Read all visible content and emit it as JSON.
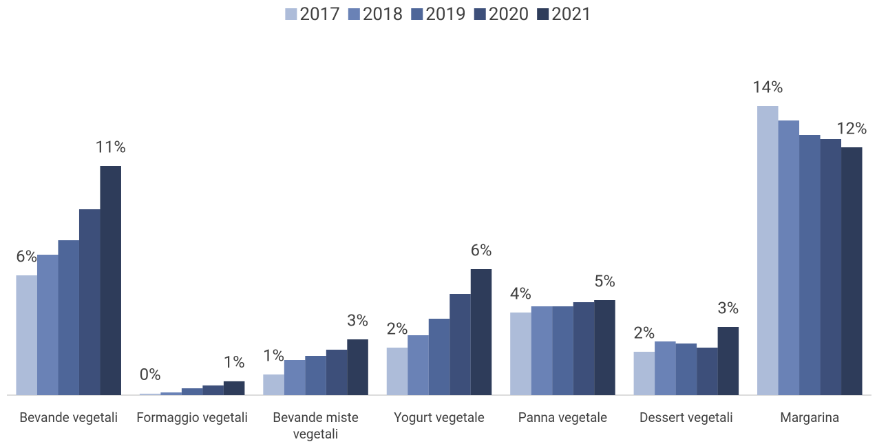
{
  "chart_data": {
    "type": "bar",
    "categories": [
      "Bevande vegetali",
      "Formaggio vegetali",
      "Bevande miste vegetali",
      "Yogurt vegetale",
      "Panna vegetale",
      "Dessert vegetali",
      "Margarina"
    ],
    "series": [
      {
        "name": "2017",
        "color": "#adbcd9",
        "values": [
          5.8,
          0.07,
          1.0,
          2.3,
          4.0,
          2.1,
          14.0
        ],
        "value_labels": [
          "6%",
          "0%",
          "1%",
          "2%",
          "4%",
          "2%",
          "14%"
        ]
      },
      {
        "name": "2018",
        "color": "#6a82b6",
        "values": [
          6.8,
          0.13,
          1.7,
          2.9,
          4.3,
          2.6,
          13.3
        ]
      },
      {
        "name": "2019",
        "color": "#4e6699",
        "values": [
          7.5,
          0.33,
          1.9,
          3.7,
          4.3,
          2.5,
          12.6
        ]
      },
      {
        "name": "2020",
        "color": "#3d4f7a",
        "values": [
          9.0,
          0.47,
          2.2,
          4.9,
          4.5,
          2.3,
          12.4
        ]
      },
      {
        "name": "2021",
        "color": "#2e3c5a",
        "values": [
          11.1,
          0.67,
          2.7,
          6.1,
          4.6,
          3.3,
          12.0
        ],
        "value_labels": [
          "11%",
          "1%",
          "3%",
          "6%",
          "5%",
          "3%",
          "12%"
        ]
      }
    ],
    "ylim": [
      0,
      15
    ],
    "legend": "top"
  }
}
